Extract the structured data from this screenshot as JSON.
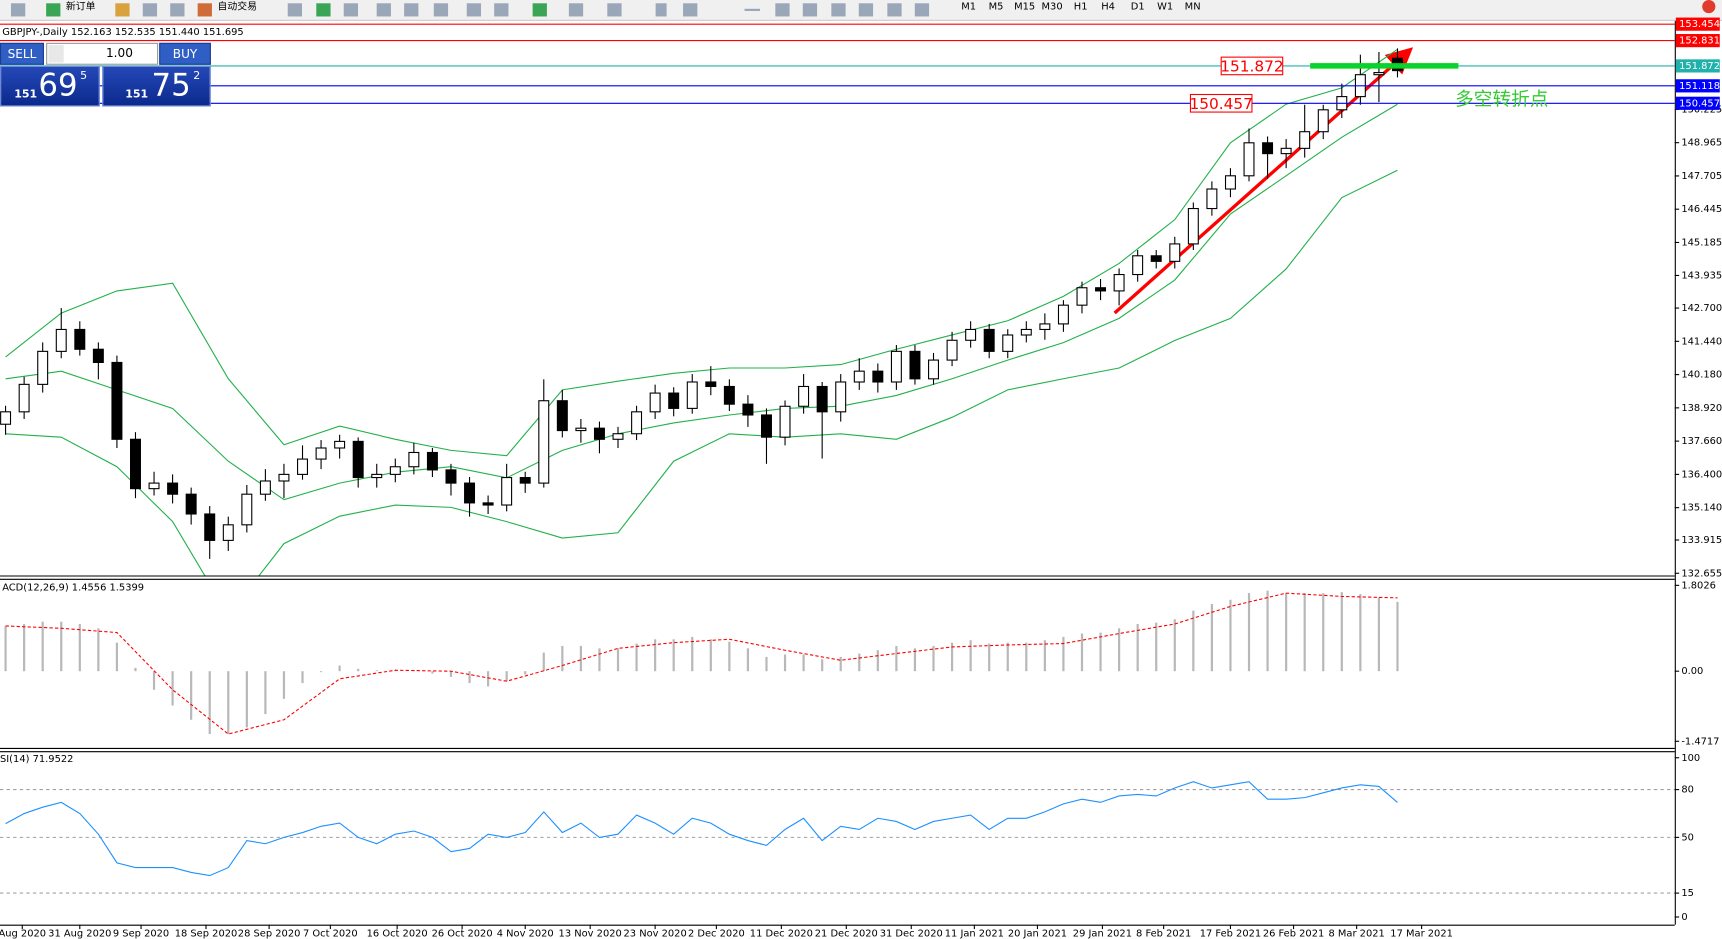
{
  "toolbar": {
    "new_order": "新订单",
    "auto_trading": "自动交易",
    "timeframes": [
      "M1",
      "M5",
      "M15",
      "M30",
      "H1",
      "H4",
      "D1",
      "W1",
      "MN"
    ]
  },
  "trade_panel": {
    "sell": "SELL",
    "buy": "BUY",
    "lot": "1.00",
    "sell_price": {
      "prefix": "151",
      "pips": "69",
      "point": "5"
    },
    "buy_price": {
      "prefix": "151",
      "pips": "75",
      "point": "2"
    }
  },
  "chart_data": [
    {
      "type": "candlestick",
      "title": "GBPJPY-,Daily  152.163 152.535 151.440 151.695",
      "up_color": "#ffffff",
      "down_color": "#000000",
      "open": [
        138.3,
        138.77,
        139.81,
        141.06,
        141.89,
        141.14,
        140.64,
        137.73,
        135.86,
        136.07,
        135.65,
        134.9,
        133.9,
        134.49,
        135.65,
        136.15,
        136.4,
        136.98,
        137.4,
        137.65,
        136.28,
        136.4,
        136.69,
        137.23,
        136.57,
        136.07,
        135.32,
        135.24,
        136.28,
        136.07,
        139.19,
        138.06,
        138.15,
        137.73,
        137.94,
        138.77,
        139.48,
        138.9,
        139.9,
        139.73,
        139.06,
        138.65,
        137.81,
        138.98,
        139.73,
        138.77,
        139.9,
        140.31,
        139.9,
        141.06,
        140.02,
        140.73,
        141.48,
        141.89,
        141.06,
        141.68,
        141.89,
        142.1,
        142.81,
        143.47,
        143.35,
        143.97,
        144.68,
        144.47,
        145.13,
        146.47,
        147.21,
        147.71,
        148.96,
        148.55,
        148.75,
        149.38,
        150.21,
        150.71,
        151.54,
        152.163
      ],
      "high": [
        139.0,
        140.1,
        141.4,
        142.7,
        142.2,
        141.4,
        140.9,
        138.0,
        136.5,
        136.4,
        135.9,
        135.2,
        134.8,
        136.0,
        136.6,
        136.8,
        137.5,
        137.7,
        137.9,
        137.8,
        136.8,
        137.0,
        137.6,
        137.4,
        136.8,
        136.3,
        135.6,
        136.8,
        136.5,
        140.0,
        139.6,
        138.5,
        138.4,
        138.2,
        139.0,
        139.8,
        139.7,
        140.2,
        140.5,
        140.0,
        139.4,
        138.9,
        139.2,
        140.2,
        139.9,
        140.2,
        140.8,
        140.6,
        141.3,
        141.3,
        141.0,
        141.8,
        142.2,
        142.1,
        141.9,
        142.2,
        142.5,
        143.0,
        143.7,
        143.8,
        144.2,
        144.9,
        144.9,
        145.4,
        146.7,
        147.5,
        148.0,
        149.5,
        149.2,
        149.1,
        150.4,
        150.4,
        151.2,
        152.3,
        152.4,
        152.535
      ],
      "low": [
        137.9,
        138.5,
        139.5,
        140.8,
        140.9,
        140.0,
        137.4,
        135.5,
        135.6,
        135.3,
        134.5,
        133.2,
        133.5,
        134.2,
        135.4,
        135.5,
        136.2,
        136.6,
        137.0,
        135.9,
        135.9,
        136.1,
        136.4,
        136.3,
        135.6,
        134.8,
        134.9,
        135.0,
        135.7,
        135.9,
        137.8,
        137.6,
        137.2,
        137.4,
        137.7,
        138.5,
        138.6,
        138.7,
        139.4,
        138.8,
        138.2,
        136.8,
        137.5,
        138.7,
        137.0,
        138.4,
        139.6,
        139.5,
        139.6,
        139.8,
        139.8,
        140.5,
        141.2,
        140.8,
        140.8,
        141.4,
        141.5,
        141.8,
        142.5,
        143.0,
        142.8,
        143.7,
        144.2,
        144.2,
        144.9,
        146.2,
        146.9,
        147.5,
        147.6,
        148.0,
        148.4,
        149.1,
        149.9,
        150.4,
        150.5,
        151.44
      ],
      "close": [
        138.77,
        139.81,
        141.06,
        141.89,
        141.14,
        140.64,
        137.73,
        135.86,
        136.07,
        135.65,
        134.9,
        133.9,
        134.49,
        135.65,
        136.15,
        136.4,
        136.98,
        137.4,
        137.65,
        136.28,
        136.4,
        136.69,
        137.23,
        136.57,
        136.07,
        135.32,
        135.24,
        136.28,
        136.07,
        139.19,
        138.06,
        138.15,
        137.73,
        137.94,
        138.77,
        139.48,
        138.9,
        139.9,
        139.73,
        139.06,
        138.65,
        137.81,
        138.98,
        139.73,
        138.77,
        139.9,
        140.31,
        139.9,
        141.06,
        140.02,
        140.73,
        141.48,
        141.89,
        141.06,
        141.68,
        141.89,
        142.1,
        142.81,
        143.47,
        143.35,
        143.97,
        144.68,
        144.47,
        145.13,
        146.47,
        147.21,
        147.71,
        148.96,
        148.55,
        148.75,
        149.38,
        150.21,
        150.71,
        151.54,
        151.62,
        151.695
      ],
      "bands": {
        "color": "#22b04a",
        "x": [
          0,
          3,
          6,
          9,
          12,
          15,
          18,
          21,
          24,
          27,
          30,
          33,
          36,
          39,
          42,
          45,
          48,
          51,
          54,
          57,
          60,
          63,
          66,
          69,
          72,
          75
        ],
        "series": [
          {
            "values": [
              140.85,
              142.51,
              143.35,
              143.64,
              140.02,
              137.52,
              138.23,
              137.73,
              137.31,
              137.11,
              139.6,
              139.93,
              140.23,
              140.43,
              140.43,
              140.56,
              141.14,
              141.68,
              142.22,
              143.14,
              144.39,
              146.05,
              148.96,
              150.42,
              151.04,
              152.5
            ]
          },
          {
            "values": [
              140.02,
              140.31,
              139.6,
              138.9,
              136.9,
              135.44,
              136.07,
              136.48,
              136.69,
              136.27,
              137.31,
              137.94,
              138.35,
              138.65,
              138.9,
              138.98,
              139.39,
              140.02,
              140.73,
              141.39,
              142.31,
              143.76,
              146.26,
              147.71,
              149.17,
              150.42
            ]
          },
          {
            "values": [
              137.94,
              137.81,
              136.69,
              134.61,
              131.07,
              133.78,
              134.82,
              135.24,
              135.15,
              134.61,
              133.99,
              134.19,
              136.9,
              137.94,
              137.81,
              137.94,
              137.73,
              138.56,
              139.6,
              140.02,
              140.43,
              141.47,
              142.31,
              144.18,
              146.88,
              147.92
            ]
          }
        ]
      },
      "hlines": [
        {
          "value": 153.454,
          "color": "#ff0000"
        },
        {
          "value": 152.831,
          "color": "#ff0000"
        },
        {
          "value": 151.872,
          "color": "#20b2aa"
        },
        {
          "value": 151.118,
          "color": "#0000ff"
        },
        {
          "value": 150.457,
          "color": "#0000ff"
        }
      ],
      "annotation": "多空转折点",
      "annotation_color": "#33cc33",
      "marker_color": "#00dd00",
      "xlim": [
        -0.3,
        89.94
      ],
      "ylim": [
        132.655,
        153.454
      ],
      "yticks": [
        132.655,
        133.915,
        {
          "value": 135.14,
          "label": "135.140"
        },
        {
          "value": 136.4,
          "label": "136.400"
        },
        {
          "value": 137.66,
          "label": "137.660"
        },
        {
          "value": 138.92,
          "label": "138.920"
        },
        {
          "value": 140.18,
          "label": "140.180"
        },
        {
          "value": 141.44,
          "label": "141.440"
        },
        {
          "value": 142.7,
          "label": "142.700"
        },
        143.935,
        145.185,
        146.445,
        147.705,
        148.965,
        150.225
      ]
    },
    {
      "type": "bar",
      "title": "ACD(12,26,9) 1.4556 1.5399",
      "color": "#b8b8b8",
      "values": [
        0.95,
        0.99,
        1.04,
        1.04,
        0.99,
        0.9,
        0.6,
        0.07,
        -0.39,
        -0.72,
        -1.02,
        -1.32,
        -1.32,
        -1.18,
        -0.9,
        -0.58,
        -0.25,
        -0.02,
        0.12,
        0.05,
        0.02,
        0.02,
        0.02,
        -0.05,
        -0.12,
        -0.25,
        -0.32,
        -0.21,
        -0.07,
        0.39,
        0.53,
        0.53,
        0.48,
        0.48,
        0.58,
        0.67,
        0.67,
        0.72,
        0.67,
        0.62,
        0.48,
        0.3,
        0.35,
        0.35,
        0.25,
        0.3,
        0.37,
        0.44,
        0.53,
        0.48,
        0.53,
        0.6,
        0.65,
        0.58,
        0.6,
        0.6,
        0.65,
        0.72,
        0.79,
        0.81,
        0.9,
        0.99,
        1.02,
        1.09,
        1.27,
        1.41,
        1.5,
        1.64,
        1.69,
        1.64,
        1.64,
        1.64,
        1.66,
        1.62,
        1.55,
        1.4556
      ],
      "line": {
        "color": "#ff0000",
        "x": [
          0,
          3,
          6,
          9,
          12,
          15,
          18,
          21,
          24,
          27,
          30,
          33,
          36,
          39,
          42,
          45,
          48,
          51,
          54,
          57,
          60,
          63,
          66,
          69,
          72,
          75
        ],
        "values": [
          0.95,
          0.9,
          0.81,
          -0.39,
          -1.32,
          -1.02,
          -0.16,
          0.02,
          0.0,
          -0.21,
          0.12,
          0.48,
          0.6,
          0.67,
          0.44,
          0.23,
          0.37,
          0.51,
          0.55,
          0.58,
          0.79,
          0.99,
          1.36,
          1.64,
          1.57,
          1.5399
        ]
      },
      "xlim": [
        -0.3,
        89.94
      ],
      "ylim": [
        -1.4717,
        1.8026
      ],
      "yticks": [
        1.8026,
        {
          "value": 0,
          "label": "0.00"
        },
        -1.4717
      ]
    },
    {
      "type": "line",
      "title": "SI(14) 71.9522",
      "color": "#1e90ff",
      "values": [
        58.6,
        65,
        69,
        72,
        65,
        52,
        34,
        31,
        31,
        31,
        28,
        26,
        31,
        48,
        46,
        50,
        53,
        57,
        59,
        50,
        46,
        52,
        54,
        50,
        41,
        43,
        52,
        50,
        53,
        66,
        53,
        59,
        50,
        52,
        64,
        59,
        52,
        62,
        59,
        52,
        48,
        45,
        55,
        62,
        48,
        57,
        55,
        62,
        60,
        55,
        60,
        62,
        64,
        55,
        62,
        62,
        66,
        71,
        74,
        72,
        76,
        77,
        76,
        81,
        85,
        81,
        83,
        85,
        74,
        74,
        75,
        78,
        81,
        83,
        82,
        71.9522
      ],
      "levels": [
        80,
        50,
        15
      ],
      "xlim": [
        -0.3,
        89.94
      ],
      "ylim": [
        0,
        100
      ],
      "yticks": [
        100,
        80,
        50,
        15,
        0
      ],
      "xticks": [
        {
          "value": 0.9,
          "label": "Aug 2020"
        },
        {
          "value": 4.0,
          "label": "31 Aug 2020"
        },
        {
          "value": 7.3,
          "label": "9 Sep 2020"
        },
        {
          "value": 10.8,
          "label": "18 Sep 2020"
        },
        {
          "value": 14.2,
          "label": "28 Sep 2020"
        },
        {
          "value": 17.5,
          "label": "7 Oct 2020"
        },
        {
          "value": 21.1,
          "label": "16 Oct 2020"
        },
        {
          "value": 24.6,
          "label": "26 Oct 2020"
        },
        {
          "value": 28.0,
          "label": "4 Nov 2020"
        },
        {
          "value": 31.5,
          "label": "13 Nov 2020"
        },
        {
          "value": 35.0,
          "label": "23 Nov 2020"
        },
        {
          "value": 38.3,
          "label": "2 Dec 2020"
        },
        {
          "value": 41.8,
          "label": "11 Dec 2020"
        },
        {
          "value": 45.3,
          "label": "21 Dec 2020"
        },
        {
          "value": 48.8,
          "label": "31 Dec 2020"
        },
        {
          "value": 52.2,
          "label": "11 Jan 2021"
        },
        {
          "value": 55.6,
          "label": "20 Jan 2021"
        },
        {
          "value": 59.1,
          "label": "29 Jan 2021"
        },
        {
          "value": 62.4,
          "label": "8 Feb 2021"
        },
        {
          "value": 66.0,
          "label": "17 Feb 2021"
        },
        {
          "value": 69.4,
          "label": "26 Feb 2021"
        },
        {
          "value": 72.8,
          "label": "8 Mar 2021"
        },
        {
          "value": 76.3,
          "label": "17 Mar 2021"
        }
      ]
    }
  ]
}
